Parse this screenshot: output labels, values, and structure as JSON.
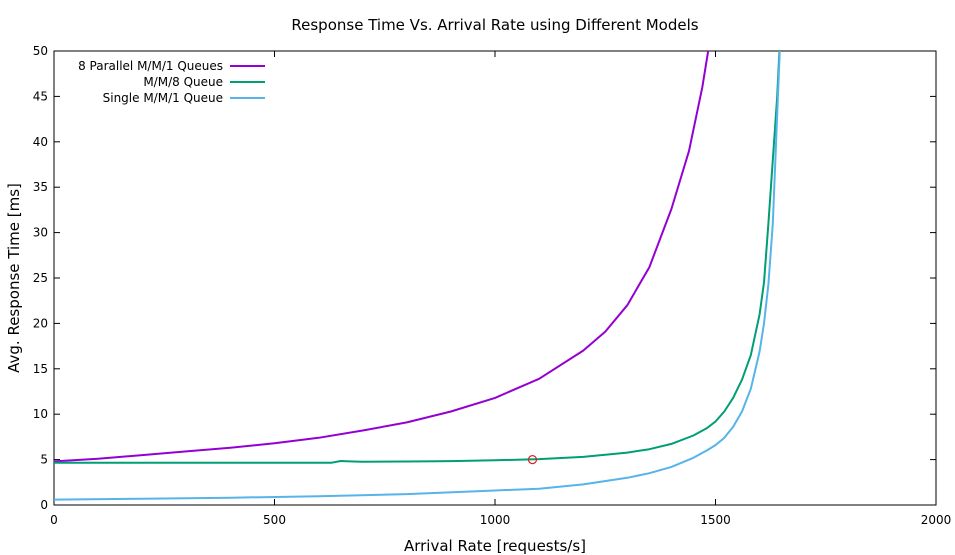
{
  "chart_data": {
    "type": "line",
    "title": "Response Time Vs. Arrival Rate using Different Models",
    "xlabel": "Arrival Rate [requests/s]",
    "ylabel": "Avg. Response Time [ms]",
    "xlim": [
      0,
      2000
    ],
    "ylim": [
      0,
      50
    ],
    "xticks": [
      "0",
      "500",
      "1000",
      "1500",
      "2000"
    ],
    "yticks": [
      "0",
      "5",
      "10",
      "15",
      "20",
      "25",
      "30",
      "35",
      "40",
      "45",
      "50"
    ],
    "grid": false,
    "legend_position": "top-left",
    "series": [
      {
        "name": "8 Parallel M/M/1 Queues",
        "color": "#9400d3",
        "x": [
          0,
          100,
          200,
          300,
          400,
          500,
          600,
          700,
          800,
          900,
          1000,
          1100,
          1200,
          1250,
          1300,
          1350,
          1400,
          1440,
          1470,
          1490,
          1505
        ],
        "y": [
          4.8,
          5.1,
          5.5,
          5.9,
          6.3,
          6.8,
          7.4,
          8.2,
          9.1,
          10.3,
          11.8,
          13.9,
          17.0,
          19.1,
          22.0,
          26.2,
          32.6,
          39.0,
          46.0,
          52.0,
          57.0
        ]
      },
      {
        "name": "M/M/8 Queue",
        "color": "#009e73",
        "x": [
          0,
          200,
          400,
          600,
          630,
          650,
          670,
          700,
          800,
          900,
          1000,
          1100,
          1200,
          1300,
          1350,
          1400,
          1450,
          1480,
          1500,
          1520,
          1540,
          1560,
          1580,
          1600,
          1610,
          1620,
          1630,
          1640,
          1645,
          1650
        ],
        "y": [
          4.65,
          4.65,
          4.65,
          4.66,
          4.66,
          4.85,
          4.8,
          4.76,
          4.79,
          4.84,
          4.92,
          5.05,
          5.3,
          5.77,
          6.15,
          6.73,
          7.65,
          8.45,
          9.2,
          10.3,
          11.8,
          13.8,
          16.5,
          21.0,
          24.5,
          31.0,
          38.0,
          45.0,
          50.0,
          55.0
        ]
      },
      {
        "name": "Single M/M/1 Queue",
        "color": "#56b4e9",
        "x": [
          0,
          200,
          400,
          600,
          800,
          1000,
          1100,
          1200,
          1300,
          1350,
          1400,
          1450,
          1480,
          1500,
          1520,
          1540,
          1560,
          1580,
          1600,
          1610,
          1620,
          1630,
          1640,
          1650
        ],
        "y": [
          0.6,
          0.69,
          0.8,
          0.96,
          1.2,
          1.6,
          1.8,
          2.27,
          3.0,
          3.5,
          4.2,
          5.2,
          6.0,
          6.6,
          7.4,
          8.6,
          10.3,
          12.8,
          16.9,
          20.0,
          24.3,
          31.0,
          43.0,
          55.0
        ]
      }
    ],
    "annotations": [
      {
        "type": "circle-marker",
        "x": 1085,
        "y": 5.0,
        "color": "#e02020"
      }
    ]
  }
}
